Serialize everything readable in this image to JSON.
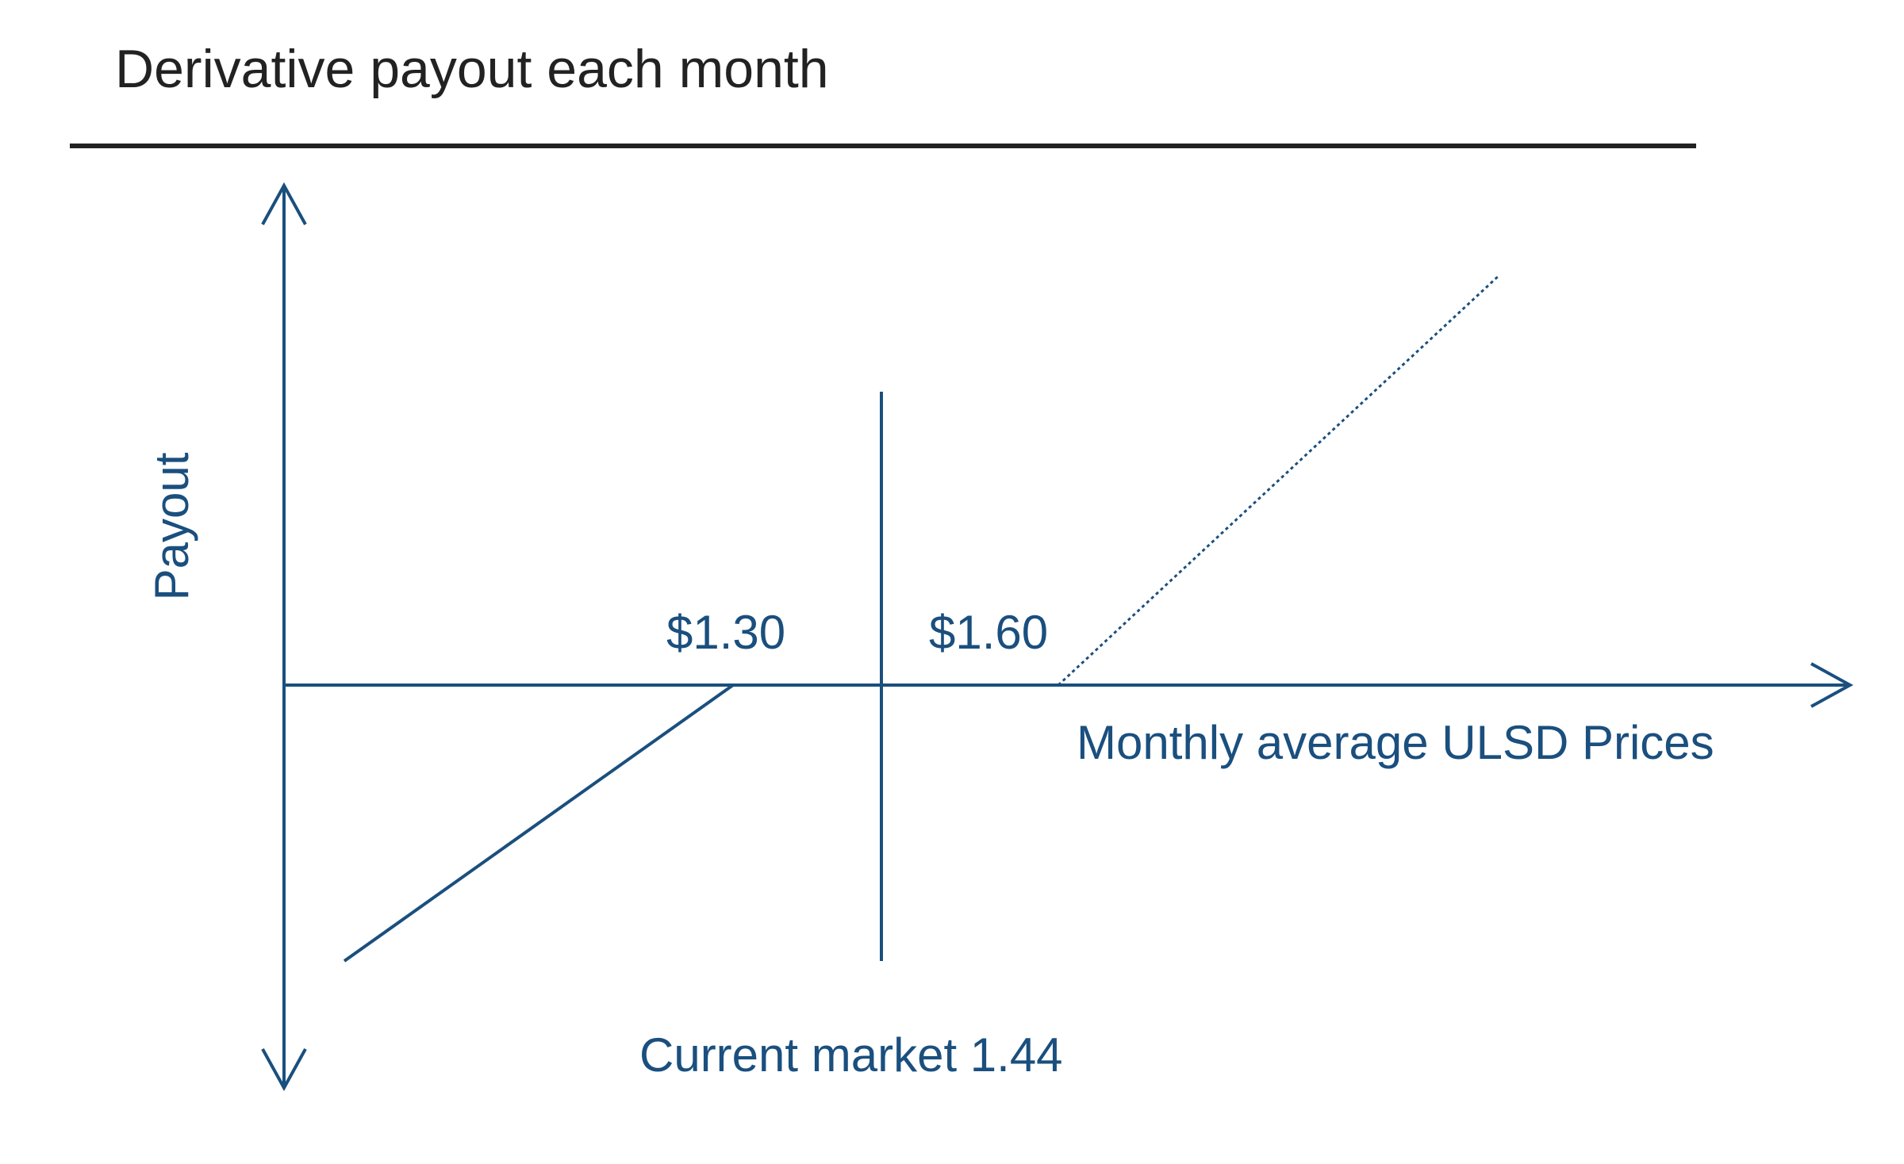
{
  "title": "Derivative payout each month",
  "y_axis_label": "Payout",
  "x_axis_label": "Monthly average ULSD Prices",
  "strike_low_label": "$1.30",
  "strike_high_label": "$1.60",
  "market_label": "Current market 1.44",
  "colors": {
    "ink": "#1a4f7e",
    "title": "#222222",
    "rule": "#222222"
  }
}
